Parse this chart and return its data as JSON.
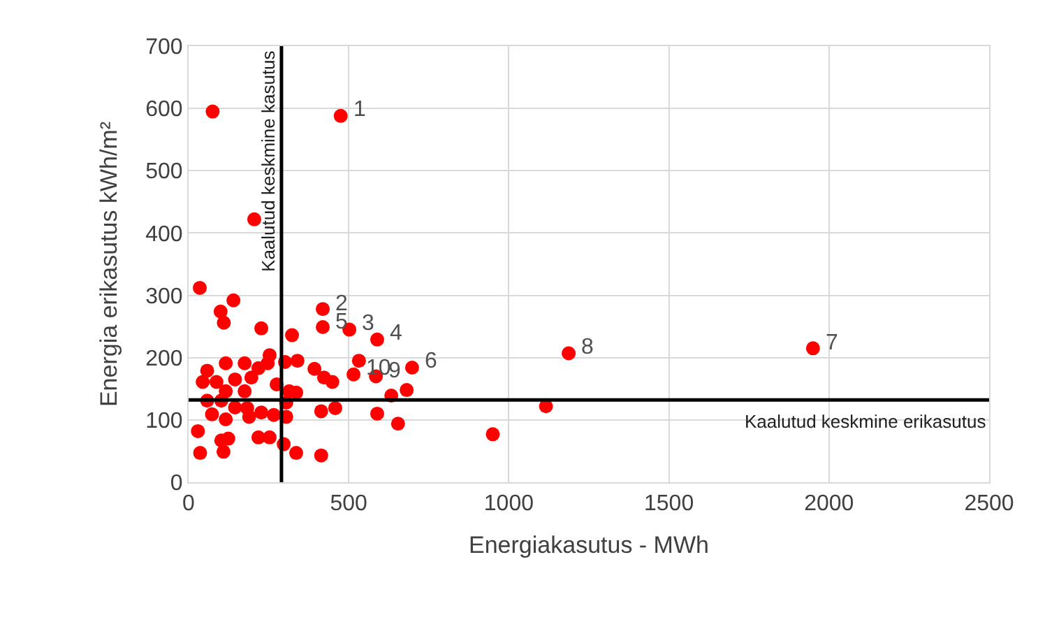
{
  "chart_data": {
    "type": "scatter",
    "xlabel": "Energiakasutus - MWh",
    "ylabel": "Energia erikasutus kWh/m²",
    "x": [
      75,
      475,
      205,
      35,
      140,
      100,
      110,
      227,
      419,
      419,
      323,
      502,
      589,
      698,
      532,
      515,
      585,
      633,
      681,
      589,
      654,
      449,
      423,
      393,
      340,
      301,
      253,
      275,
      314,
      336,
      414,
      458,
      305,
      297,
      336,
      414,
      253,
      218,
      305,
      266,
      227,
      183,
      58,
      116,
      175,
      218,
      87,
      145,
      196,
      44,
      116,
      175,
      58,
      102,
      145,
      73,
      116,
      29,
      102,
      124,
      109,
      36,
      247,
      189,
      950,
      1116,
      1187,
      1950
    ],
    "series": [
      {
        "color": "#ff0000",
        "values": [
          595,
          588,
          422,
          312,
          292,
          274,
          256,
          247,
          278,
          249,
          236,
          245,
          229,
          184,
          195,
          173,
          170,
          139,
          148,
          110,
          94,
          161,
          168,
          182,
          195,
          193,
          204,
          157,
          146,
          144,
          114,
          119,
          105,
          61,
          47,
          43,
          72,
          72,
          128,
          108,
          112,
          119,
          179,
          191,
          191,
          183,
          161,
          165,
          168,
          161,
          146,
          146,
          131,
          131,
          120,
          109,
          101,
          82,
          67,
          70,
          49,
          47,
          191,
          105,
          77,
          122,
          207,
          215
        ]
      }
    ],
    "marker": "circle",
    "xlim": [
      0,
      2500
    ],
    "xticks": [
      0,
      500,
      1000,
      1500,
      2000,
      2500
    ],
    "ylim": [
      0,
      700
    ],
    "yticks": [
      0,
      100,
      200,
      300,
      400,
      500,
      600,
      700
    ],
    "grid": true,
    "legend": false,
    "ref_lines": [
      {
        "axis": "x",
        "value": 290,
        "label": "Kaalutud keskmine kasutus",
        "color": "#000000"
      },
      {
        "axis": "y",
        "value": 132,
        "label": "Kaalutud keskmine erikasutus",
        "color": "#000000"
      }
    ],
    "annotations": [
      {
        "text": "1",
        "x": 475,
        "y": 588
      },
      {
        "text": "2",
        "x": 419,
        "y": 278
      },
      {
        "text": "3",
        "x": 502,
        "y": 245
      },
      {
        "text": "4",
        "x": 589,
        "y": 229
      },
      {
        "text": "5",
        "x": 419,
        "y": 249
      },
      {
        "text": "6",
        "x": 698,
        "y": 184
      },
      {
        "text": "7",
        "x": 1950,
        "y": 215
      },
      {
        "text": "8",
        "x": 1187,
        "y": 207
      },
      {
        "text": "9",
        "x": 585,
        "y": 170
      },
      {
        "text": "10",
        "x": 515,
        "y": 173
      }
    ]
  }
}
